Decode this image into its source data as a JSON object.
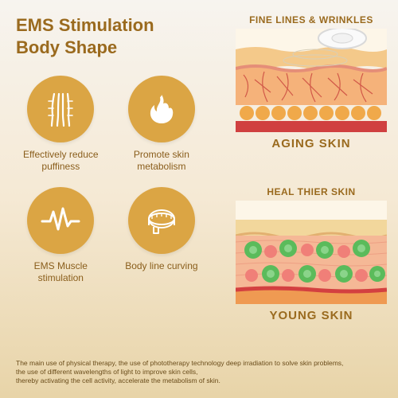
{
  "title_line1": "EMS Stimulation",
  "title_line2": "Body Shape",
  "title_color": "#9a6a1e",
  "icons": [
    {
      "caption": "Effectively reduce puffiness"
    },
    {
      "caption": "Promote skin metabolism"
    },
    {
      "caption": "EMS Muscle stimulation"
    },
    {
      "caption": "Body line curving"
    }
  ],
  "icon_bg": "#dba544",
  "icon_fg": "#ffffff",
  "caption_color": "#8a5e1c",
  "diagrams": {
    "top": {
      "label": "FINE LINES & WRINKLES",
      "title": "AGING SKIN",
      "title_color": "#9a6a1e",
      "layer_colors": {
        "epidermis": "#f4c98a",
        "dermis_top": "#f5b27a",
        "dermis_line": "#e58e78",
        "fat": "#f0a94a",
        "muscle": "#d04040"
      }
    },
    "bottom": {
      "label": "HEAL THIER SKIN",
      "title": "YOUNG SKIN",
      "title_color": "#9a6a1e",
      "layer_colors": {
        "epidermis": "#f2d79c",
        "dermis": "#f5b896",
        "dot1": "#5bbb5b",
        "dot2": "#f07f78",
        "border": "#d34040"
      }
    }
  },
  "footer_text": "The main use of physical therapy, the use of phototherapy technology deep irradiation to solve skin problems,\nthe use of different wavelengths of light to improve skin cells,\nthereby activating the cell activity, accelerate the metabolism of skin.",
  "footer_color": "#6a4c1a"
}
